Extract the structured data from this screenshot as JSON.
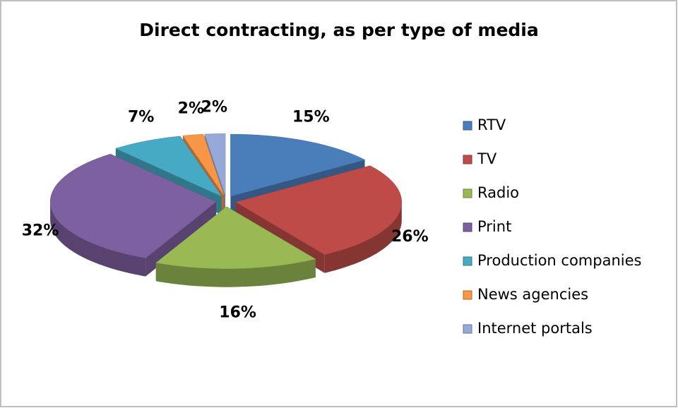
{
  "chart_data": {
    "type": "pie",
    "title": "Direct contracting, as per type of media",
    "categories": [
      "RTV",
      "TV",
      "Radio",
      "Print",
      "Production companies",
      "News agencies",
      "Internet portals"
    ],
    "values": [
      15,
      26,
      16,
      32,
      7,
      2,
      2
    ],
    "value_labels": [
      "15%",
      "26%",
      "16%",
      "32%",
      "7%",
      "2%",
      "2%"
    ],
    "colors": [
      "#4a7ebb",
      "#be4b48",
      "#98b954",
      "#7d60a0",
      "#46aac5",
      "#f79646",
      "#94a9d8"
    ],
    "legend": "right"
  }
}
